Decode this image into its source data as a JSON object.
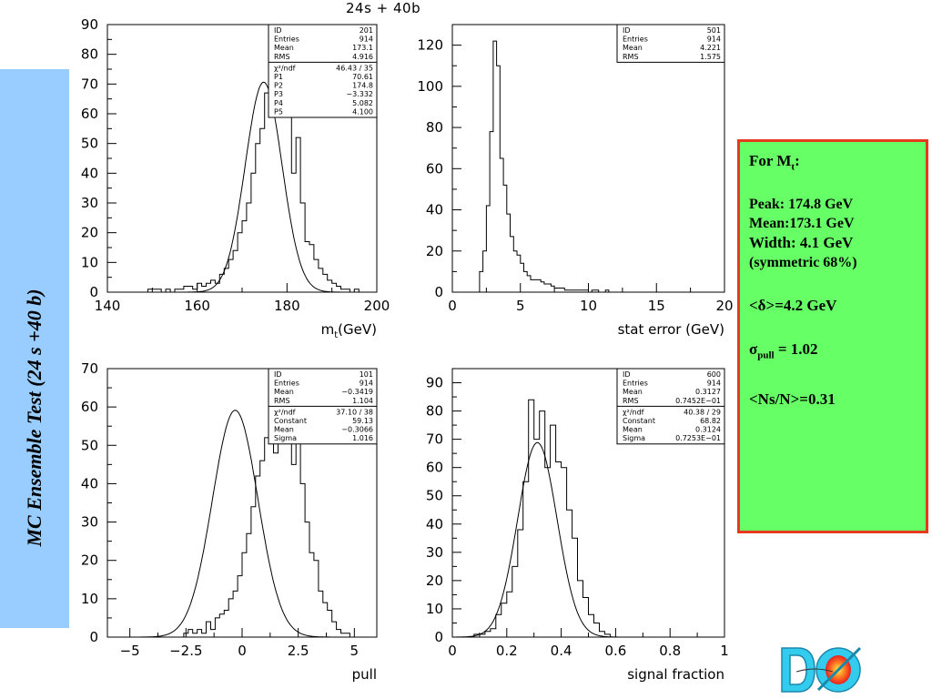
{
  "side_banner": {
    "text": "MC Ensemble Test (24 s +40 b)"
  },
  "top_title": "24s +  40b",
  "summary": {
    "heading_prefix": "For M",
    "heading_sub": "t",
    "heading_suffix": ":",
    "peak": "Peak: 174.8 GeV",
    "mean": "Mean:173.1 GeV",
    "width": "Width: 4.1 GeV",
    "width_note": "(symmetric 68%)",
    "delta": "<δ>=4.2 GeV",
    "sigma_prefix": "σ",
    "sigma_sub": "pull",
    "sigma_suffix": " = 1.02",
    "ns_n": "<Ns/N>=0.31"
  },
  "colors": {
    "banner": "#99ccff",
    "summary_bg": "#66ff66",
    "summary_border": "#e63a1e"
  },
  "chart_data": [
    {
      "id": "h201",
      "type": "bar",
      "xlabel_main": "m",
      "xlabel_sub": "t",
      "xlabel_suffix": "(GeV)",
      "xlim": [
        140,
        200
      ],
      "ylim": [
        0,
        90
      ],
      "xticks": [
        "140",
        "160",
        "180",
        "200"
      ],
      "xtick_values": [
        140,
        160,
        180,
        200
      ],
      "yticks": [
        "0",
        "10",
        "20",
        "30",
        "40",
        "50",
        "60",
        "70",
        "80",
        "90"
      ],
      "ytick_values": [
        0,
        10,
        20,
        30,
        40,
        50,
        60,
        70,
        80,
        90
      ],
      "bin_start": 140,
      "bin_width": 1,
      "values": [
        0,
        0,
        0,
        0,
        0,
        0,
        0,
        0,
        0,
        1,
        1,
        1,
        0,
        1,
        0,
        1,
        1,
        2,
        2,
        1,
        3,
        2,
        3,
        4,
        3,
        6,
        8,
        11,
        14,
        20,
        24,
        30,
        40,
        50,
        55,
        67,
        80,
        75,
        85,
        70,
        60,
        40,
        52,
        30,
        17,
        16,
        11,
        8,
        6,
        4,
        3,
        2,
        1,
        1,
        0,
        1,
        0,
        0,
        0,
        0
      ],
      "fit": {
        "amplitude": 70.61,
        "mean": 174.8,
        "sigma": 4.1
      },
      "stats": [
        {
          "label": "ID",
          "value": "201"
        },
        {
          "label": "Entries",
          "value": "914"
        },
        {
          "label": "Mean",
          "value": "173.1"
        },
        {
          "label": "RMS",
          "value": "4.916"
        }
      ],
      "fit_stats": [
        {
          "label": "χ²/ndf",
          "value": "46.43   /   35"
        },
        {
          "label": "P1",
          "value": "70.61"
        },
        {
          "label": "P2",
          "value": "174.8"
        },
        {
          "label": "P3",
          "value": "−3.332"
        },
        {
          "label": "P4",
          "value": "5.082"
        },
        {
          "label": "P5",
          "value": "4.100"
        }
      ]
    },
    {
      "id": "h501",
      "type": "bar",
      "xlabel_main": "stat error (GeV)",
      "xlabel_sub": "",
      "xlabel_suffix": "",
      "xlim": [
        0,
        20
      ],
      "ylim": [
        0,
        130
      ],
      "xticks": [
        "0",
        "5",
        "10",
        "15",
        "20"
      ],
      "xtick_values": [
        0,
        5,
        10,
        15,
        20
      ],
      "yticks": [
        "0",
        "20",
        "40",
        "60",
        "80",
        "100",
        "120"
      ],
      "ytick_values": [
        0,
        20,
        40,
        60,
        80,
        100,
        120
      ],
      "bin_start": 0,
      "bin_width": 0.25,
      "values": [
        0,
        0,
        0,
        0,
        0,
        0,
        0,
        0,
        10,
        20,
        42,
        78,
        122,
        110,
        65,
        52,
        38,
        27,
        20,
        18,
        14,
        10,
        8,
        6,
        6,
        6,
        5,
        4,
        4,
        3,
        2,
        2,
        2,
        1,
        1,
        1,
        1,
        1,
        1,
        1,
        0,
        1,
        1,
        0,
        0,
        1,
        0,
        0,
        0,
        0,
        0,
        0,
        0,
        0,
        0,
        0,
        0,
        0,
        0,
        0,
        0,
        0,
        0,
        0,
        0,
        0,
        0,
        0,
        0,
        0,
        0,
        0,
        0,
        0,
        0,
        0,
        0,
        0,
        0,
        0
      ],
      "stats": [
        {
          "label": "ID",
          "value": "501"
        },
        {
          "label": "Entries",
          "value": "914"
        },
        {
          "label": "Mean",
          "value": "4.221"
        },
        {
          "label": "RMS",
          "value": "1.575"
        }
      ],
      "fit_stats": []
    },
    {
      "id": "h101",
      "type": "bar",
      "xlabel_main": "pull",
      "xlabel_sub": "",
      "xlabel_suffix": "",
      "xlim": [
        -6,
        6
      ],
      "ylim": [
        0,
        70
      ],
      "xticks": [
        "−5",
        "−2.5",
        "0",
        "2.5",
        "5"
      ],
      "xtick_values": [
        -5,
        -2.5,
        0,
        2.5,
        5
      ],
      "yticks": [
        "0",
        "10",
        "20",
        "30",
        "40",
        "50",
        "60",
        "70"
      ],
      "ytick_values": [
        0,
        10,
        20,
        30,
        40,
        50,
        60,
        70
      ],
      "bin_start": -6,
      "bin_width": 0.2,
      "values": [
        0,
        0,
        0,
        0,
        0,
        0,
        0,
        0,
        0,
        0,
        0,
        0,
        0,
        0,
        0,
        0,
        0,
        1,
        2,
        1,
        2,
        1,
        4,
        2,
        5,
        6,
        7,
        10,
        12,
        16,
        22,
        27,
        34,
        42,
        46,
        52,
        55,
        48,
        60,
        63,
        58,
        45,
        52,
        40,
        30,
        22,
        20,
        12,
        9,
        7,
        4,
        2,
        1,
        1,
        0,
        0,
        0,
        0,
        0,
        0
      ],
      "fit": {
        "amplitude": 59.13,
        "mean": -0.3066,
        "sigma": 1.016
      },
      "stats": [
        {
          "label": "ID",
          "value": "101"
        },
        {
          "label": "Entries",
          "value": "914"
        },
        {
          "label": "Mean",
          "value": "−0.3419"
        },
        {
          "label": "RMS",
          "value": "1.104"
        }
      ],
      "fit_stats": [
        {
          "label": "χ²/ndf",
          "value": "37.10   /   38"
        },
        {
          "label": "Constant",
          "value": "59.13"
        },
        {
          "label": "Mean",
          "value": "−0.3066"
        },
        {
          "label": "Sigma",
          "value": "1.016"
        }
      ]
    },
    {
      "id": "h600",
      "type": "bar",
      "xlabel_main": "signal fraction",
      "xlabel_sub": "",
      "xlabel_suffix": "",
      "xlim": [
        0,
        1
      ],
      "ylim": [
        0,
        95
      ],
      "xticks": [
        "0",
        "0.2",
        "0.4",
        "0.6",
        "0.8",
        "1"
      ],
      "xtick_values": [
        0,
        0.2,
        0.4,
        0.6,
        0.8,
        1
      ],
      "yticks": [
        "0",
        "10",
        "20",
        "30",
        "40",
        "50",
        "60",
        "70",
        "80",
        "90"
      ],
      "ytick_values": [
        0,
        10,
        20,
        30,
        40,
        50,
        60,
        70,
        80,
        90
      ],
      "bin_start": 0,
      "bin_width": 0.02,
      "values": [
        0,
        0,
        0,
        0,
        1,
        1,
        2,
        3,
        8,
        12,
        16,
        25,
        38,
        55,
        84,
        70,
        80,
        60,
        75,
        62,
        60,
        45,
        35,
        20,
        14,
        8,
        5,
        2,
        1,
        0,
        0,
        0,
        0,
        0,
        0,
        0,
        0,
        0,
        0,
        0,
        0,
        0,
        0,
        0,
        0,
        0,
        0,
        0,
        0,
        0
      ],
      "fit": {
        "amplitude": 68.82,
        "mean": 0.3124,
        "sigma": 0.07253
      },
      "stats": [
        {
          "label": "ID",
          "value": "600"
        },
        {
          "label": "Entries",
          "value": "914"
        },
        {
          "label": "Mean",
          "value": "0.3127"
        },
        {
          "label": "RMS",
          "value": "0.7452E−01"
        }
      ],
      "fit_stats": [
        {
          "label": "χ²/ndf",
          "value": "40.38   /   29"
        },
        {
          "label": "Constant",
          "value": "68.82"
        },
        {
          "label": "Mean",
          "value": "0.3124"
        },
        {
          "label": "Sigma",
          "value": "0.7253E−01"
        }
      ]
    }
  ]
}
